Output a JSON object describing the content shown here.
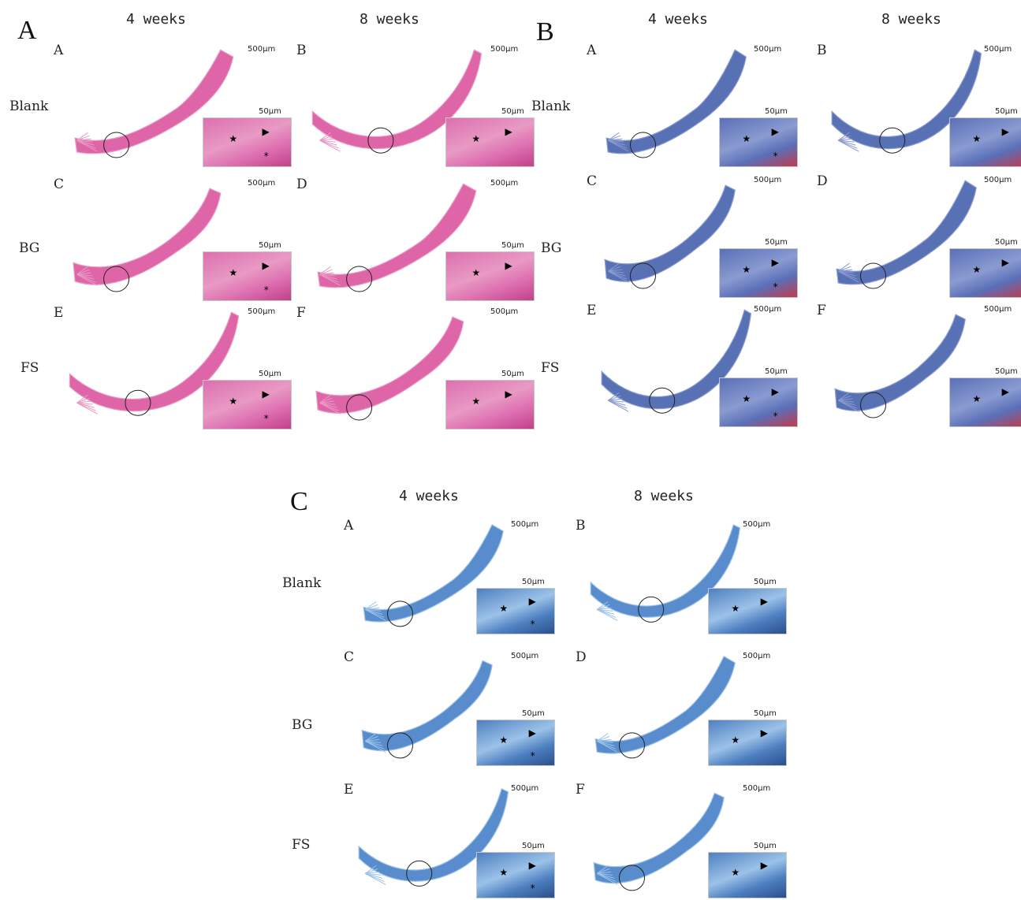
{
  "panels": [
    {
      "id": "A",
      "letter": "A",
      "stain": "he",
      "colors": {
        "tissue": "#d94a9a",
        "tissue_light": "#e89ac4",
        "inset": "#dd6fb0",
        "inset_dark": "#c2408a"
      },
      "time_labels": [
        "4 weeks",
        "8 weeks"
      ],
      "row_labels": [
        "Blank",
        "BG",
        "FS"
      ],
      "sub_letters": [
        "A",
        "B",
        "C",
        "D",
        "E",
        "F"
      ],
      "scale_large": "500μm",
      "scale_small": "50μm"
    },
    {
      "id": "B",
      "letter": "B",
      "stain": "masson",
      "colors": {
        "tissue": "#3b58a8",
        "tissue_light": "#8a9bd0",
        "inset": "#5a6fb8",
        "inset_dark": "#c33a4a"
      },
      "time_labels": [
        "4 weeks",
        "8 weeks"
      ],
      "row_labels": [
        "Blank",
        "BG",
        "FS"
      ],
      "sub_letters": [
        "A",
        "B",
        "C",
        "D",
        "E",
        "F"
      ],
      "scale_large": "500μm",
      "scale_small": "50μm"
    },
    {
      "id": "C",
      "letter": "C",
      "stain": "toluidine",
      "colors": {
        "tissue": "#3b78c4",
        "tissue_light": "#9cc2e8",
        "inset": "#4e7fc0",
        "inset_dark": "#2a4f8c"
      },
      "time_labels": [
        "4 weeks",
        "8 weeks"
      ],
      "row_labels": [
        "Blank",
        "BG",
        "FS"
      ],
      "sub_letters": [
        "A",
        "B",
        "C",
        "D",
        "E",
        "F"
      ],
      "scale_large": "500μm",
      "scale_small": "50μm"
    }
  ],
  "marker_glyphs": {
    "star": "★",
    "arrowhead": "▶",
    "asterisk": "*"
  }
}
